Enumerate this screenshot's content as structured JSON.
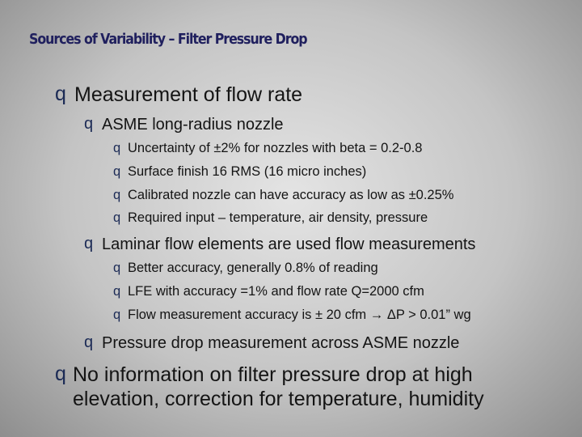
{
  "slide": {
    "title": "Sources of Variability – Filter Pressure Drop",
    "bullet_marker": "q",
    "items": [
      {
        "level": 1,
        "text": "Measurement of flow rate"
      },
      {
        "level": 2,
        "text": "ASME long-radius nozzle"
      },
      {
        "level": 3,
        "text": "Uncertainty of ±2% for nozzles with beta = 0.2-0.8"
      },
      {
        "level": 3,
        "text": "Surface finish 16 RMS (16 micro inches)"
      },
      {
        "level": 3,
        "text": "Calibrated nozzle can have accuracy as low as ±0.25%"
      },
      {
        "level": 3,
        "text": "Required input – temperature, air density, pressure"
      },
      {
        "level": 2,
        "text": "Laminar flow elements are used flow measurements"
      },
      {
        "level": 3,
        "text": "Better accuracy, generally 0.8% of reading"
      },
      {
        "level": 3,
        "text": "LFE with accuracy =1% and flow rate Q=2000 cfm"
      },
      {
        "level": 3,
        "text": "Flow measurement accuracy is ± 20 cfm → ΔP > 0.01” wg"
      },
      {
        "level": 2,
        "text": "Pressure drop measurement across ASME nozzle"
      },
      {
        "level": 1,
        "text": "No information on filter pressure drop at high elevation, correction for temperature, humidity"
      }
    ]
  }
}
